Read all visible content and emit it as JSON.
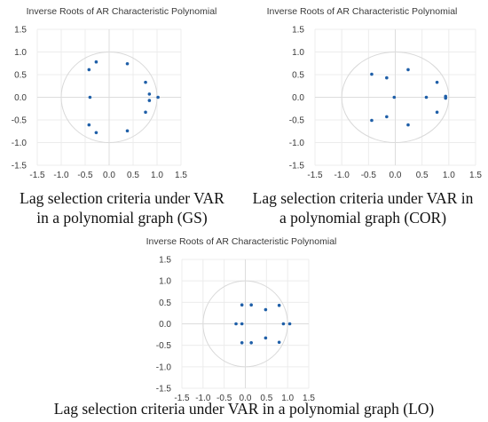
{
  "chart_data": [
    {
      "type": "scatter",
      "title": "Inverse Roots of AR Characteristic Polynomial",
      "xlim": [
        -1.5,
        1.5
      ],
      "ylim": [
        -1.5,
        1.5
      ],
      "x_ticks": [
        "-1.5",
        "-1.0",
        "-0.5",
        "0.0",
        "0.5",
        "1.0",
        "1.5"
      ],
      "y_ticks": [
        "1.5",
        "1.0",
        "0.5",
        "0.0",
        "-0.5",
        "-1.0",
        "-1.5"
      ],
      "grid": true,
      "unit_circle": true,
      "points": [
        {
          "x": -0.27,
          "y": 0.78
        },
        {
          "x": 0.38,
          "y": 0.74
        },
        {
          "x": -0.42,
          "y": 0.61
        },
        {
          "x": 0.76,
          "y": 0.33
        },
        {
          "x": 0.84,
          "y": 0.07
        },
        {
          "x": 1.02,
          "y": 0.0
        },
        {
          "x": -0.4,
          "y": 0.0
        },
        {
          "x": 0.84,
          "y": -0.07
        },
        {
          "x": 0.76,
          "y": -0.33
        },
        {
          "x": -0.42,
          "y": -0.61
        },
        {
          "x": 0.38,
          "y": -0.74
        },
        {
          "x": -0.27,
          "y": -0.78
        }
      ],
      "caption_lines": [
        "Lag selection criteria under VAR",
        "in a polynomial graph (GS)"
      ]
    },
    {
      "type": "scatter",
      "title": "Inverse Roots of AR Characteristic Polynomial",
      "xlim": [
        -1.5,
        1.5
      ],
      "ylim": [
        -1.5,
        1.5
      ],
      "x_ticks": [
        "-1.5",
        "-1.0",
        "-0.5",
        "0.0",
        "0.5",
        "1.0",
        "1.5"
      ],
      "y_ticks": [
        "1.5",
        "1.0",
        "0.5",
        "0.0",
        "-0.5",
        "-1.0",
        "-1.5"
      ],
      "grid": true,
      "unit_circle": true,
      "points": [
        {
          "x": 0.24,
          "y": 0.61
        },
        {
          "x": -0.44,
          "y": 0.51
        },
        {
          "x": -0.16,
          "y": 0.43
        },
        {
          "x": 0.78,
          "y": 0.33
        },
        {
          "x": -0.02,
          "y": 0.0
        },
        {
          "x": 0.58,
          "y": 0.0
        },
        {
          "x": 0.94,
          "y": 0.02
        },
        {
          "x": 0.94,
          "y": -0.02
        },
        {
          "x": 0.78,
          "y": -0.33
        },
        {
          "x": -0.16,
          "y": -0.43
        },
        {
          "x": -0.44,
          "y": -0.51
        },
        {
          "x": 0.24,
          "y": -0.61
        }
      ],
      "caption_lines": [
        "Lag selection criteria under VAR in",
        "a polynomial graph (COR)"
      ]
    },
    {
      "type": "scatter",
      "title": "Inverse Roots of AR Characteristic Polynomial",
      "xlim": [
        -1.5,
        1.5
      ],
      "ylim": [
        -1.5,
        1.5
      ],
      "x_ticks": [
        "-1.5",
        "-1.0",
        "-0.5",
        "0.0",
        "0.5",
        "1.0",
        "1.5"
      ],
      "y_ticks": [
        "1.5",
        "1.0",
        "0.5",
        "0.0",
        "-0.5",
        "-1.0",
        "-1.5"
      ],
      "grid": true,
      "unit_circle": true,
      "points": [
        {
          "x": -0.08,
          "y": 0.44
        },
        {
          "x": 0.14,
          "y": 0.44
        },
        {
          "x": 0.8,
          "y": 0.43
        },
        {
          "x": 0.48,
          "y": 0.33
        },
        {
          "x": -0.22,
          "y": 0.0
        },
        {
          "x": -0.08,
          "y": 0.0
        },
        {
          "x": 0.9,
          "y": 0.0
        },
        {
          "x": 1.05,
          "y": 0.0
        },
        {
          "x": 0.48,
          "y": -0.33
        },
        {
          "x": -0.08,
          "y": -0.44
        },
        {
          "x": 0.14,
          "y": -0.44
        },
        {
          "x": 0.8,
          "y": -0.43
        }
      ],
      "caption_lines": [
        "Lag selection criteria under VAR in a polynomial graph (LO)"
      ]
    }
  ]
}
